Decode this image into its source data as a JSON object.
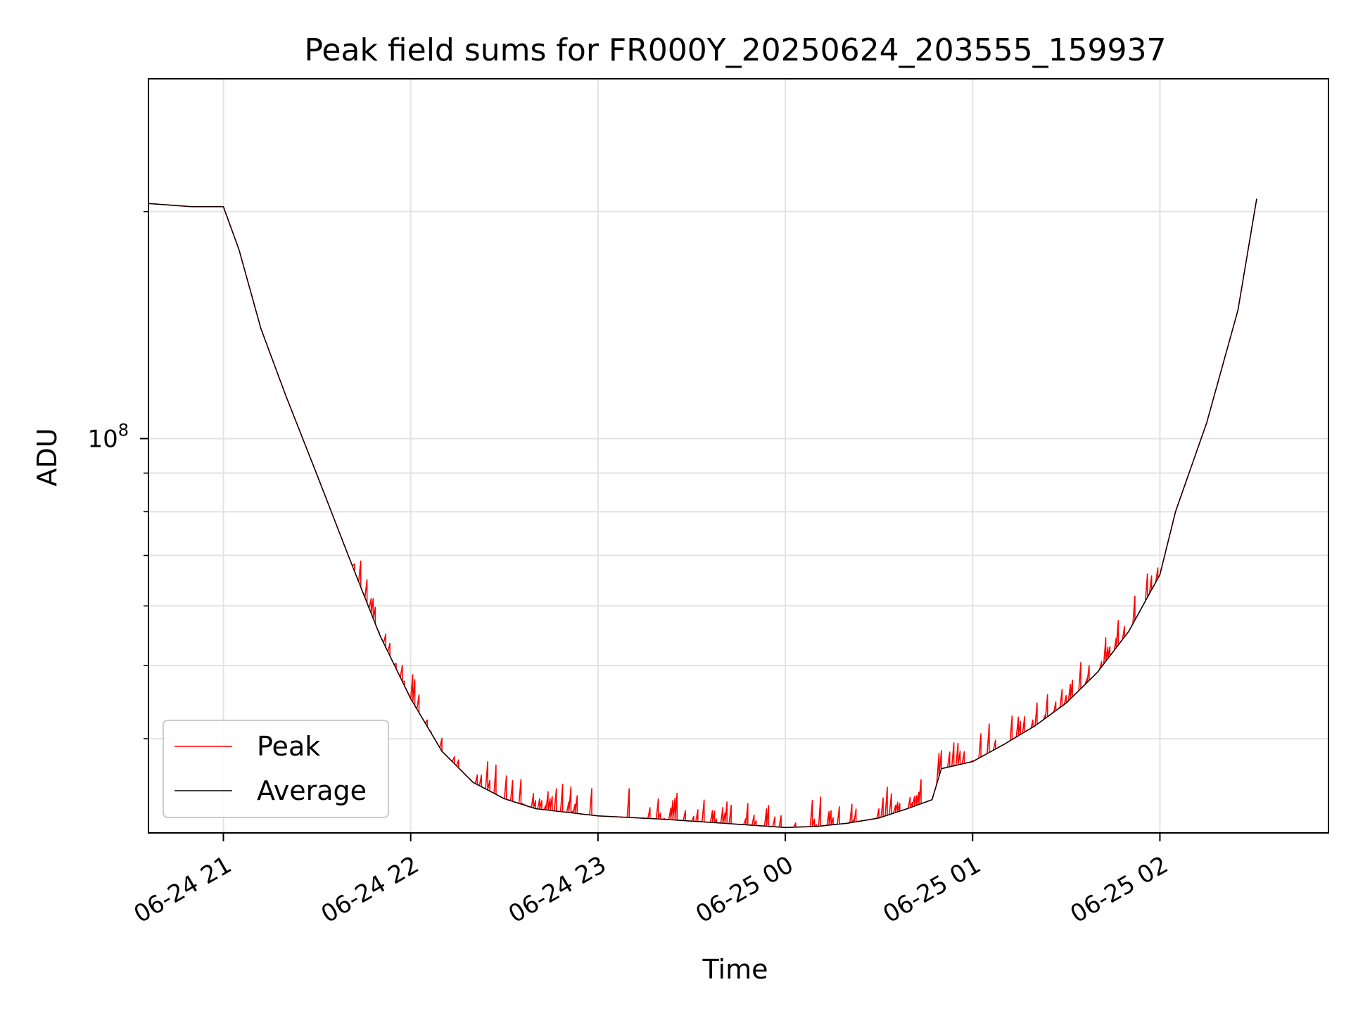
{
  "chart_data": {
    "type": "line",
    "title": "Peak field sums for FR000Y_20250624_203555_159937",
    "xlabel": "Time",
    "ylabel": "ADU",
    "yscale": "log",
    "grid": true,
    "legend_position": "lower-left",
    "xlim": [
      "2025-06-24 20:36",
      "2025-06-25 02:54"
    ],
    "ylim": [
      30000000,
      300000000
    ],
    "x_ticks": [
      {
        "value": "2025-06-24 21:00",
        "label": "06-24 21"
      },
      {
        "value": "2025-06-24 22:00",
        "label": "06-24 22"
      },
      {
        "value": "2025-06-24 23:00",
        "label": "06-24 23"
      },
      {
        "value": "2025-06-25 00:00",
        "label": "06-25 00"
      },
      {
        "value": "2025-06-25 01:00",
        "label": "06-25 01"
      },
      {
        "value": "2025-06-25 02:00",
        "label": "06-25 02"
      }
    ],
    "y_major_ticks": [
      {
        "value": 100000000,
        "label_base": "10",
        "label_exp": "8"
      }
    ],
    "y_minor_ticks": [
      40000000,
      50000000,
      60000000,
      70000000,
      80000000,
      90000000,
      200000000
    ],
    "series": [
      {
        "name": "Peak",
        "color": "#ff0000",
        "spiky": true,
        "x": [
          "2025-06-24 20:36",
          "2025-06-24 20:50",
          "2025-06-24 21:00",
          "2025-06-24 21:05",
          "2025-06-24 21:10",
          "2025-06-24 21:12",
          "2025-06-24 21:20",
          "2025-06-24 21:30",
          "2025-06-24 21:40",
          "2025-06-24 21:50",
          "2025-06-24 22:00",
          "2025-06-24 22:10",
          "2025-06-24 22:20",
          "2025-06-24 22:30",
          "2025-06-24 22:40",
          "2025-06-24 23:00",
          "2025-06-24 23:20",
          "2025-06-24 23:40",
          "2025-06-25 00:00",
          "2025-06-25 00:10",
          "2025-06-25 00:20",
          "2025-06-25 00:30",
          "2025-06-25 00:40",
          "2025-06-25 00:47",
          "2025-06-25 00:50",
          "2025-06-25 01:00",
          "2025-06-25 01:10",
          "2025-06-25 01:20",
          "2025-06-25 01:30",
          "2025-06-25 01:40",
          "2025-06-25 01:50",
          "2025-06-25 02:00",
          "2025-06-25 02:05",
          "2025-06-25 02:15",
          "2025-06-25 02:25",
          "2025-06-25 02:31"
        ],
        "y": [
          205000000,
          203000000,
          203000000,
          178000000,
          150000000,
          140000000,
          114000000,
          89500000,
          70000000,
          55000000,
          45200000,
          38500000,
          35000000,
          33300000,
          32300000,
          31600000,
          31300000,
          30900000,
          30500000,
          30600000,
          30900000,
          31400000,
          32400000,
          33200000,
          36500000,
          37300000,
          39300000,
          41600000,
          44600000,
          49000000,
          55500000,
          66000000,
          80000000,
          105000000,
          148000000,
          208000000
        ]
      },
      {
        "name": "Average",
        "color": "#000000",
        "spiky": false,
        "x": [
          "2025-06-24 20:36",
          "2025-06-24 20:50",
          "2025-06-24 21:00",
          "2025-06-24 21:05",
          "2025-06-24 21:10",
          "2025-06-24 21:12",
          "2025-06-24 21:20",
          "2025-06-24 21:30",
          "2025-06-24 21:40",
          "2025-06-24 21:50",
          "2025-06-24 22:00",
          "2025-06-24 22:10",
          "2025-06-24 22:20",
          "2025-06-24 22:30",
          "2025-06-24 22:40",
          "2025-06-24 23:00",
          "2025-06-24 23:20",
          "2025-06-24 23:40",
          "2025-06-25 00:00",
          "2025-06-25 00:10",
          "2025-06-25 00:20",
          "2025-06-25 00:30",
          "2025-06-25 00:40",
          "2025-06-25 00:47",
          "2025-06-25 00:50",
          "2025-06-25 01:00",
          "2025-06-25 01:10",
          "2025-06-25 01:20",
          "2025-06-25 01:30",
          "2025-06-25 01:40",
          "2025-06-25 01:50",
          "2025-06-25 02:00",
          "2025-06-25 02:05",
          "2025-06-25 02:15",
          "2025-06-25 02:25",
          "2025-06-25 02:31"
        ],
        "y": [
          205000000,
          203000000,
          203000000,
          178000000,
          150000000,
          140000000,
          114000000,
          89500000,
          70000000,
          55000000,
          45200000,
          38500000,
          35000000,
          33300000,
          32300000,
          31600000,
          31300000,
          30900000,
          30500000,
          30600000,
          30900000,
          31400000,
          32400000,
          33200000,
          36500000,
          37300000,
          39300000,
          41600000,
          44600000,
          49000000,
          55500000,
          66000000,
          80000000,
          105000000,
          148000000,
          208000000
        ]
      }
    ]
  }
}
